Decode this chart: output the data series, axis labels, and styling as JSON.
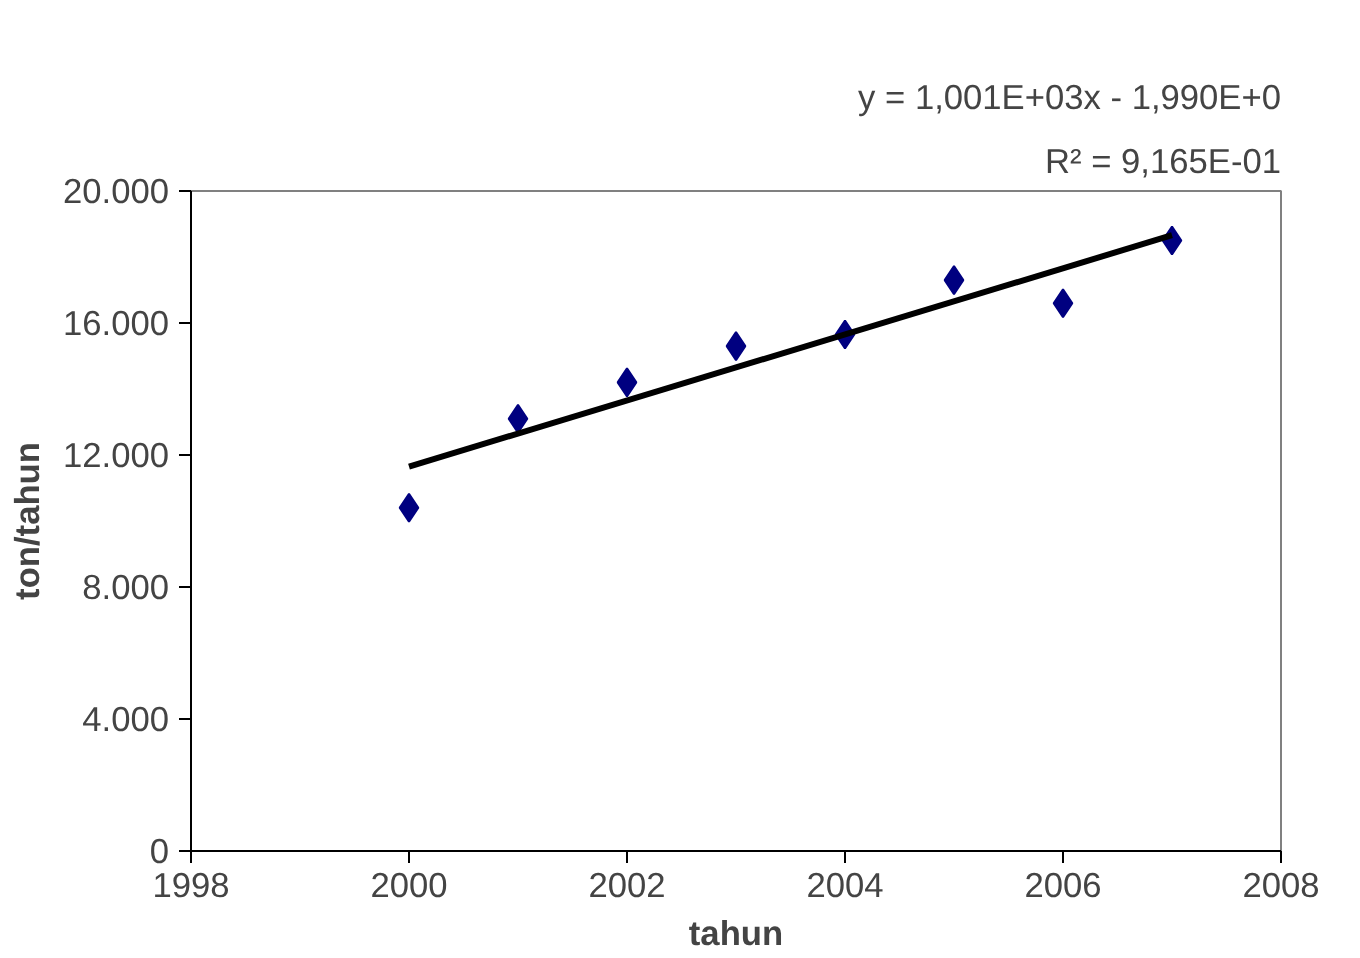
{
  "chart_data": {
    "type": "scatter",
    "xlabel": "tahun",
    "ylabel": "ton/tahun",
    "annotations": [
      "y = 1,001E+03x - 1,990E+0",
      "R² = 9,165E-01"
    ],
    "grid": false,
    "xlim": [
      1998,
      2008
    ],
    "xticks": [
      1998,
      2000,
      2002,
      2004,
      2006,
      2008
    ],
    "ylim": [
      0,
      20000
    ],
    "yticks": [
      {
        "value": 0,
        "label": "0"
      },
      {
        "value": 4000,
        "label": "4.000"
      },
      {
        "value": 8000,
        "label": "8.000"
      },
      {
        "value": 12000,
        "label": "12.000"
      },
      {
        "value": 16000,
        "label": "16.000"
      },
      {
        "value": 20000,
        "label": "20.000"
      }
    ],
    "series": [
      {
        "marker": "diamond",
        "color": "#000080",
        "x": [
          2000,
          2001,
          2002,
          2003,
          2004,
          2005,
          2006,
          2007
        ],
        "values": [
          10400,
          13100,
          14200,
          15300,
          15650,
          17300,
          16600,
          18500
        ]
      },
      {
        "type": "line",
        "color": "#000000",
        "x": [
          2000,
          2007
        ],
        "values": [
          11650,
          18660
        ]
      }
    ]
  }
}
